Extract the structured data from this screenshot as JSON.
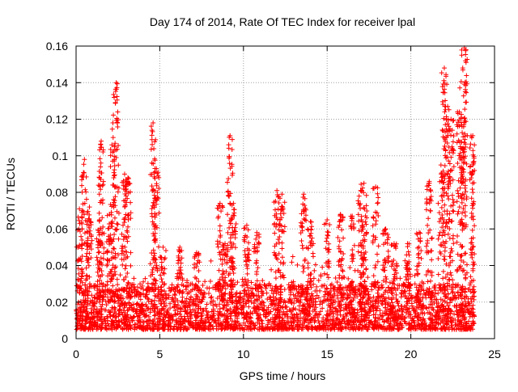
{
  "chart_data": {
    "type": "scatter",
    "title": "Day 174 of 2014, Rate Of TEC Index for receiver lpal",
    "xlabel": "GPS time / hours",
    "ylabel": "ROTI / TECUs",
    "xlim": [
      0,
      25
    ],
    "ylim": [
      0,
      0.16
    ],
    "x_ticks": [
      0,
      5,
      10,
      15,
      20,
      25
    ],
    "y_ticks": [
      0,
      0.02,
      0.04,
      0.06,
      0.08,
      0.1,
      0.12,
      0.14,
      0.16
    ],
    "x_tick_labels": [
      "0",
      "5",
      "10",
      "15",
      "20",
      "25"
    ],
    "y_tick_labels": [
      "0",
      "0.02",
      "0.04",
      "0.06",
      "0.08",
      "0.1",
      "0.12",
      "0.14",
      "0.16"
    ],
    "grid": true,
    "marker": "+",
    "color": "#ff0000",
    "data_range": {
      "x": [
        0,
        23.8
      ],
      "y": [
        0.002,
        0.159
      ]
    },
    "series": [
      {
        "name": "ROTI",
        "baseline_band": [
          0.005,
          0.03
        ],
        "peaks": [
          {
            "x": 0.2,
            "y": 0.071
          },
          {
            "x": 0.5,
            "y": 0.098
          },
          {
            "x": 0.8,
            "y": 0.072
          },
          {
            "x": 1.4,
            "y": 0.065
          },
          {
            "x": 1.5,
            "y": 0.108
          },
          {
            "x": 2.0,
            "y": 0.068
          },
          {
            "x": 2.2,
            "y": 0.118
          },
          {
            "x": 2.4,
            "y": 0.14
          },
          {
            "x": 2.9,
            "y": 0.09
          },
          {
            "x": 3.1,
            "y": 0.088
          },
          {
            "x": 4.6,
            "y": 0.118
          },
          {
            "x": 4.8,
            "y": 0.093
          },
          {
            "x": 5.2,
            "y": 0.05
          },
          {
            "x": 6.2,
            "y": 0.05
          },
          {
            "x": 7.2,
            "y": 0.047
          },
          {
            "x": 8.6,
            "y": 0.074
          },
          {
            "x": 8.9,
            "y": 0.052
          },
          {
            "x": 9.2,
            "y": 0.111
          },
          {
            "x": 9.4,
            "y": 0.074
          },
          {
            "x": 10.2,
            "y": 0.062
          },
          {
            "x": 10.8,
            "y": 0.058
          },
          {
            "x": 12.0,
            "y": 0.081
          },
          {
            "x": 12.3,
            "y": 0.079
          },
          {
            "x": 13.6,
            "y": 0.079
          },
          {
            "x": 14.0,
            "y": 0.064
          },
          {
            "x": 15.0,
            "y": 0.065
          },
          {
            "x": 15.8,
            "y": 0.068
          },
          {
            "x": 16.5,
            "y": 0.067
          },
          {
            "x": 17.0,
            "y": 0.081
          },
          {
            "x": 17.2,
            "y": 0.085
          },
          {
            "x": 17.9,
            "y": 0.083
          },
          {
            "x": 18.5,
            "y": 0.06
          },
          {
            "x": 19.0,
            "y": 0.052
          },
          {
            "x": 19.8,
            "y": 0.052
          },
          {
            "x": 20.5,
            "y": 0.058
          },
          {
            "x": 21.1,
            "y": 0.086
          },
          {
            "x": 21.8,
            "y": 0.095
          },
          {
            "x": 22.0,
            "y": 0.148
          },
          {
            "x": 22.2,
            "y": 0.127
          },
          {
            "x": 22.4,
            "y": 0.12
          },
          {
            "x": 22.9,
            "y": 0.124
          },
          {
            "x": 23.1,
            "y": 0.148
          },
          {
            "x": 23.2,
            "y": 0.159
          },
          {
            "x": 23.7,
            "y": 0.111
          },
          {
            "x": 23.8,
            "y": 0.092
          }
        ]
      }
    ]
  }
}
